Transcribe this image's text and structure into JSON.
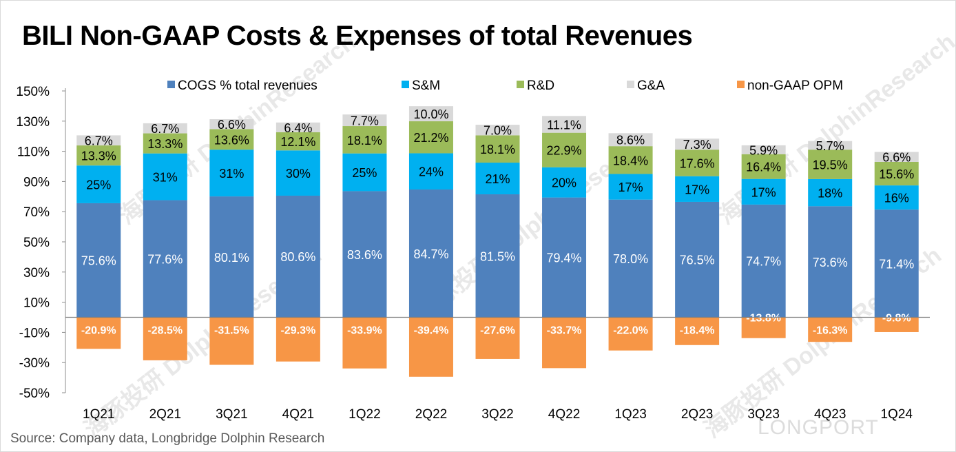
{
  "page": {
    "title": "BILI Non-GAAP Costs & Expenses of total Revenues",
    "source": "Source: Company data, Longbridge Dolphin Research",
    "watermark": "海豚投研 DolphinResearch",
    "brand": "LONGPORT"
  },
  "chart_data": {
    "type": "bar",
    "stacked": true,
    "title": "BILI Non-GAAP Costs & Expenses of total Revenues",
    "categories": [
      "1Q21",
      "2Q21",
      "3Q21",
      "4Q21",
      "1Q22",
      "2Q22",
      "3Q22",
      "4Q22",
      "1Q23",
      "2Q23",
      "3Q23",
      "4Q23",
      "1Q24"
    ],
    "ylim": [
      -50,
      150
    ],
    "yticks": [
      -50,
      -30,
      -10,
      10,
      30,
      50,
      70,
      90,
      110,
      130,
      150
    ],
    "ytick_labels": [
      "-50%",
      "-30%",
      "-10%",
      "10%",
      "30%",
      "50%",
      "70%",
      "90%",
      "110%",
      "130%",
      "150%"
    ],
    "legend_position": "top",
    "series": [
      {
        "name": "COGS % total revenues",
        "color": "#4f81bd",
        "label_color": "#ffffff",
        "values": [
          75.6,
          77.6,
          80.1,
          80.6,
          83.6,
          84.7,
          81.5,
          79.4,
          78.0,
          76.5,
          74.7,
          73.6,
          71.4
        ],
        "labels": [
          "75.6%",
          "77.6%",
          "80.1%",
          "80.6%",
          "83.6%",
          "84.7%",
          "81.5%",
          "79.4%",
          "78.0%",
          "76.5%",
          "74.7%",
          "73.6%",
          "71.4%"
        ]
      },
      {
        "name": "S&M",
        "color": "#00b0f0",
        "label_color": "#000000",
        "values": [
          25,
          31,
          31,
          30,
          25,
          24,
          21,
          20,
          17,
          17,
          17,
          18,
          16
        ],
        "labels": [
          "25%",
          "31%",
          "31%",
          "30%",
          "25%",
          "24%",
          "21%",
          "20%",
          "17%",
          "17%",
          "17%",
          "18%",
          "16%"
        ]
      },
      {
        "name": "R&D",
        "color": "#9bbb59",
        "label_color": "#000000",
        "values": [
          13.3,
          13.3,
          13.6,
          12.1,
          18.1,
          21.2,
          18.1,
          22.9,
          18.4,
          17.6,
          16.4,
          19.5,
          15.6
        ],
        "labels": [
          "13.3%",
          "13.3%",
          "13.6%",
          "12.1%",
          "18.1%",
          "21.2%",
          "18.1%",
          "22.9%",
          "18.4%",
          "17.6%",
          "16.4%",
          "19.5%",
          "15.6%"
        ]
      },
      {
        "name": "G&A",
        "color": "#d9d9d9",
        "label_color": "#000000",
        "values": [
          6.7,
          6.7,
          6.6,
          6.4,
          7.7,
          10.0,
          7.0,
          11.1,
          8.6,
          7.3,
          5.9,
          5.7,
          6.6
        ],
        "labels": [
          "6.7%",
          "6.7%",
          "6.6%",
          "6.4%",
          "7.7%",
          "10.0%",
          "7.0%",
          "11.1%",
          "8.6%",
          "7.3%",
          "5.9%",
          "5.7%",
          "6.6%"
        ]
      },
      {
        "name": "non-GAAP OPM",
        "color": "#f79646",
        "label_color": "#ffffff",
        "values": [
          -20.9,
          -28.5,
          -31.5,
          -29.3,
          -33.9,
          -39.4,
          -27.6,
          -33.7,
          -22.0,
          -18.4,
          -13.8,
          -16.3,
          -9.8
        ],
        "labels": [
          "-20.9%",
          "-28.5%",
          "-31.5%",
          "-29.3%",
          "-33.9%",
          "-39.4%",
          "-27.6%",
          "-33.7%",
          "-22.0%",
          "-18.4%",
          "-13.8%",
          "-16.3%",
          "-9.8%"
        ]
      }
    ]
  }
}
